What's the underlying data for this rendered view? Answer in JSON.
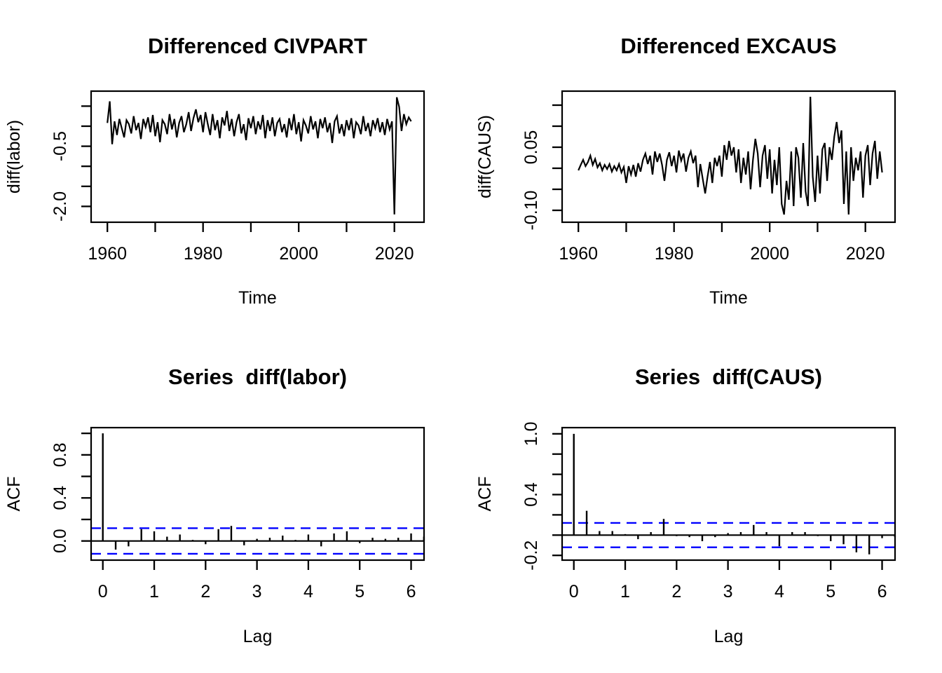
{
  "figure": {
    "background": "#FFFFFF",
    "line_color": "#000000",
    "conf_band_color": "#0000FF"
  },
  "chart_data": [
    {
      "type": "line",
      "title": "Differenced CIVPART",
      "xlabel": "Time",
      "ylabel": "diff(labor)",
      "xlim": [
        1956.6,
        2026.2
      ],
      "ylim": [
        -2.395,
        0.874
      ],
      "xticks": [
        {
          "v": 1960,
          "l": "1960"
        },
        {
          "v": 1970
        },
        {
          "v": 1980,
          "l": "1980"
        },
        {
          "v": 1990
        },
        {
          "v": 2000,
          "l": "2000"
        },
        {
          "v": 2010
        },
        {
          "v": 2020,
          "l": "2020"
        }
      ],
      "yticks": [
        {
          "v": 0.5
        },
        {
          "v": 0.0
        },
        {
          "v": -0.5,
          "l": "-0.5"
        },
        {
          "v": -1.0
        },
        {
          "v": -1.5
        },
        {
          "v": -2.0,
          "l": "-2.0"
        }
      ],
      "x_start": 1960,
      "x_step": 0.5,
      "values": [
        0.08,
        0.62,
        -0.45,
        0.12,
        -0.22,
        0.18,
        -0.05,
        -0.28,
        0.15,
        0.05,
        -0.18,
        0.25,
        -0.1,
        0.08,
        -0.32,
        0.18,
        -0.02,
        0.22,
        -0.15,
        0.28,
        -0.25,
        0.1,
        -0.4,
        0.15,
        0.05,
        -0.2,
        0.3,
        -0.08,
        0.18,
        -0.28,
        0.08,
        0.25,
        -0.15,
        0.05,
        0.35,
        -0.12,
        0.2,
        0.42,
        0.1,
        0.28,
        -0.15,
        0.35,
        0.05,
        -0.22,
        0.3,
        -0.1,
        0.15,
        -0.3,
        0.22,
        0.02,
        0.38,
        -0.12,
        0.18,
        -0.25,
        0.1,
        0.3,
        -0.18,
        0.05,
        -0.35,
        0.2,
        -0.05,
        0.25,
        -0.2,
        0.12,
        -0.08,
        0.28,
        -0.3,
        0.15,
        -0.12,
        0.22,
        -0.25,
        0.08,
        0.18,
        -0.15,
        0.05,
        -0.28,
        0.2,
        -0.1,
        0.3,
        -0.2,
        0.1,
        -0.38,
        0.15,
        0.02,
        -0.18,
        0.25,
        -0.08,
        0.12,
        -0.3,
        0.18,
        -0.05,
        0.22,
        -0.15,
        0.08,
        -0.42,
        0.12,
        0.25,
        -0.18,
        0.05,
        -0.25,
        0.15,
        -0.1,
        0.2,
        -0.3,
        0.1,
        0.02,
        -0.2,
        0.25,
        -0.12,
        0.08,
        -0.25,
        0.15,
        -0.05,
        0.2,
        -0.15,
        0.1,
        -0.22,
        0.18,
        -0.08,
        0.12,
        -2.2,
        0.72,
        0.48,
        -0.12,
        0.3,
        0.05,
        0.22,
        0.12
      ]
    },
    {
      "type": "line",
      "title": "Differenced EXCAUS",
      "xlabel": "Time",
      "ylabel": "diff(CAUS)",
      "xlim": [
        1956.6,
        2026.2
      ],
      "ylim": [
        -0.1283,
        0.1833
      ],
      "xticks": [
        {
          "v": 1960,
          "l": "1960"
        },
        {
          "v": 1970
        },
        {
          "v": 1980,
          "l": "1980"
        },
        {
          "v": 1990
        },
        {
          "v": 2000,
          "l": "2000"
        },
        {
          "v": 2010
        },
        {
          "v": 2020,
          "l": "2020"
        }
      ],
      "yticks": [
        {
          "v": 0.15
        },
        {
          "v": 0.1
        },
        {
          "v": 0.05,
          "l": "0.05"
        },
        {
          "v": 0.0
        },
        {
          "v": -0.05
        },
        {
          "v": -0.1,
          "l": "-0.10"
        }
      ],
      "x_start": 1960,
      "x_step": 0.5,
      "values": [
        -0.005,
        0.008,
        0.02,
        0.005,
        0.015,
        0.03,
        0.008,
        0.022,
        0.002,
        0.012,
        -0.005,
        0.008,
        -0.002,
        0.01,
        -0.008,
        0.005,
        -0.005,
        0.01,
        -0.01,
        0.003,
        -0.035,
        0.005,
        -0.015,
        0.008,
        -0.02,
        0.012,
        -0.008,
        0.02,
        0.035,
        0.01,
        0.03,
        -0.015,
        0.04,
        0.015,
        0.035,
        0.008,
        -0.03,
        0.02,
        0.038,
        0.005,
        0.03,
        -0.01,
        0.042,
        0.018,
        0.035,
        -0.008,
        0.025,
        0.04,
        0.012,
        0.03,
        -0.045,
        0.01,
        -0.025,
        -0.06,
        -0.02,
        0.015,
        -0.035,
        0.025,
        0.005,
        0.03,
        -0.02,
        0.055,
        0.02,
        0.065,
        0.03,
        0.05,
        -0.01,
        0.045,
        -0.035,
        0.025,
        -0.015,
        0.04,
        -0.05,
        0.02,
        0.07,
        0.035,
        -0.045,
        0.03,
        0.055,
        -0.025,
        0.045,
        -0.06,
        0.02,
        -0.04,
        0.05,
        -0.085,
        -0.11,
        -0.03,
        -0.075,
        0.04,
        -0.09,
        0.05,
        0.025,
        -0.07,
        0.06,
        -0.055,
        -0.09,
        0.17,
        -0.02,
        -0.08,
        0.03,
        -0.06,
        0.045,
        0.06,
        -0.03,
        0.05,
        0.02,
        0.075,
        0.11,
        0.06,
        0.09,
        -0.085,
        0.04,
        -0.11,
        0.05,
        -0.03,
        0.025,
        -0.005,
        0.04,
        -0.07,
        0.03,
        0.055,
        -0.04,
        0.035,
        0.065,
        -0.025,
        0.04,
        -0.01
      ]
    },
    {
      "type": "acf",
      "title": "Series  diff(labor)",
      "xlabel": "Lag",
      "ylabel": "ACF",
      "xlim": [
        -0.228,
        6.252
      ],
      "ylim": [
        -0.178,
        1.053
      ],
      "xticks": [
        {
          "v": 0,
          "l": "0"
        },
        {
          "v": 1,
          "l": "1"
        },
        {
          "v": 2,
          "l": "2"
        },
        {
          "v": 3,
          "l": "3"
        },
        {
          "v": 4,
          "l": "4"
        },
        {
          "v": 5,
          "l": "5"
        },
        {
          "v": 6,
          "l": "6"
        }
      ],
      "yticks": [
        {
          "v": 1.0
        },
        {
          "v": 0.8,
          "l": "0.8"
        },
        {
          "v": 0.6
        },
        {
          "v": 0.4,
          "l": "0.4"
        },
        {
          "v": 0.2
        },
        {
          "v": 0.0,
          "l": "0.0"
        }
      ],
      "conf": 0.119,
      "lag_step": 0.25,
      "values": [
        1.0,
        -0.08,
        -0.05,
        0.11,
        0.09,
        0.04,
        0.06,
        0.01,
        -0.03,
        0.11,
        0.14,
        -0.04,
        0.02,
        0.03,
        0.05,
        0.01,
        0.06,
        -0.05,
        0.07,
        0.09,
        -0.02,
        0.03,
        0.02,
        0.03,
        0.07,
        0.04
      ]
    },
    {
      "type": "acf",
      "title": "Series  diff(CAUS)",
      "xlabel": "Lag",
      "ylabel": "ACF",
      "xlim": [
        -0.228,
        6.252
      ],
      "ylim": [
        -0.247,
        1.061
      ],
      "xticks": [
        {
          "v": 0,
          "l": "0"
        },
        {
          "v": 1,
          "l": "1"
        },
        {
          "v": 2,
          "l": "2"
        },
        {
          "v": 3,
          "l": "3"
        },
        {
          "v": 4,
          "l": "4"
        },
        {
          "v": 5,
          "l": "5"
        },
        {
          "v": 6,
          "l": "6"
        }
      ],
      "yticks": [
        {
          "v": 1.0,
          "l": "1.0"
        },
        {
          "v": 0.8
        },
        {
          "v": 0.6
        },
        {
          "v": 0.4,
          "l": "0.4"
        },
        {
          "v": 0.2
        },
        {
          "v": 0.0
        },
        {
          "v": -0.2,
          "l": "-0.2"
        }
      ],
      "conf": 0.12,
      "lag_step": 0.25,
      "values": [
        1.0,
        0.24,
        0.04,
        0.04,
        0.01,
        -0.04,
        0.03,
        0.16,
        -0.01,
        -0.02,
        -0.06,
        -0.02,
        0.02,
        0.03,
        0.1,
        0.03,
        -0.11,
        0.03,
        0.03,
        -0.01,
        -0.06,
        -0.09,
        -0.17,
        -0.19,
        -0.03,
        -0.02
      ]
    }
  ]
}
